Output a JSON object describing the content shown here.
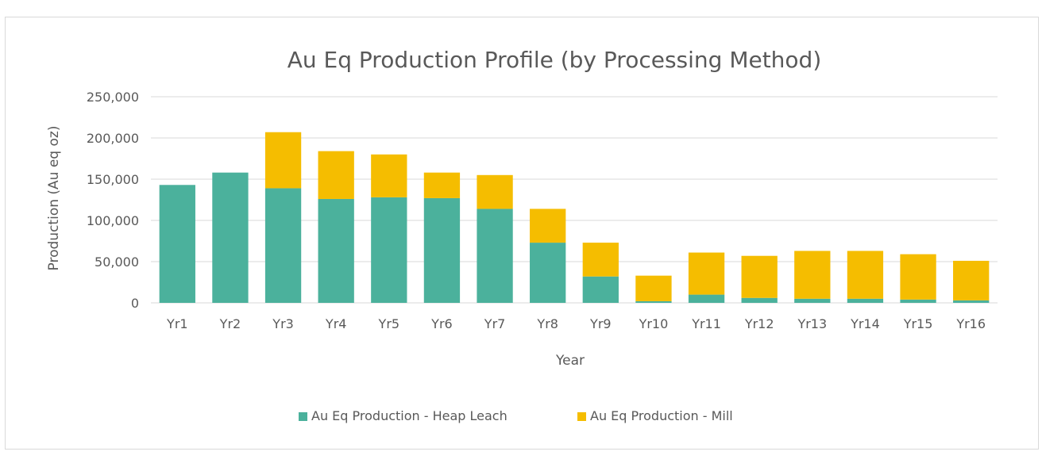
{
  "chart_data": {
    "type": "bar",
    "stacked": true,
    "title": "Au Eq Production Profile (by Processing Method)",
    "xlabel": "Year",
    "ylabel": "Production (Au eq oz)",
    "ylim": [
      0,
      250000
    ],
    "ytick_values": [
      0,
      50000,
      100000,
      150000,
      200000,
      250000
    ],
    "ytick_labels": [
      "0",
      "50,000",
      "100,000",
      "150,000",
      "200,000",
      "250,000"
    ],
    "grid": true,
    "legend_position": "bottom",
    "categories": [
      "Yr1",
      "Yr2",
      "Yr3",
      "Yr4",
      "Yr5",
      "Yr6",
      "Yr7",
      "Yr8",
      "Yr9",
      "Yr10",
      "Yr11",
      "Yr12",
      "Yr13",
      "Yr14",
      "Yr15",
      "Yr16"
    ],
    "series": [
      {
        "name": "Au Eq Production - Heap Leach",
        "color": "#4bb19c",
        "values": [
          143000,
          158000,
          139000,
          126000,
          128000,
          127000,
          114000,
          73000,
          32000,
          2000,
          10000,
          6000,
          5000,
          5000,
          4000,
          3000
        ]
      },
      {
        "name": "Au Eq Production - Mill",
        "color": "#f5bd00",
        "values": [
          0,
          0,
          68000,
          58000,
          52000,
          31000,
          41000,
          41000,
          41000,
          31000,
          51000,
          51000,
          58000,
          58000,
          55000,
          48000
        ]
      }
    ]
  }
}
